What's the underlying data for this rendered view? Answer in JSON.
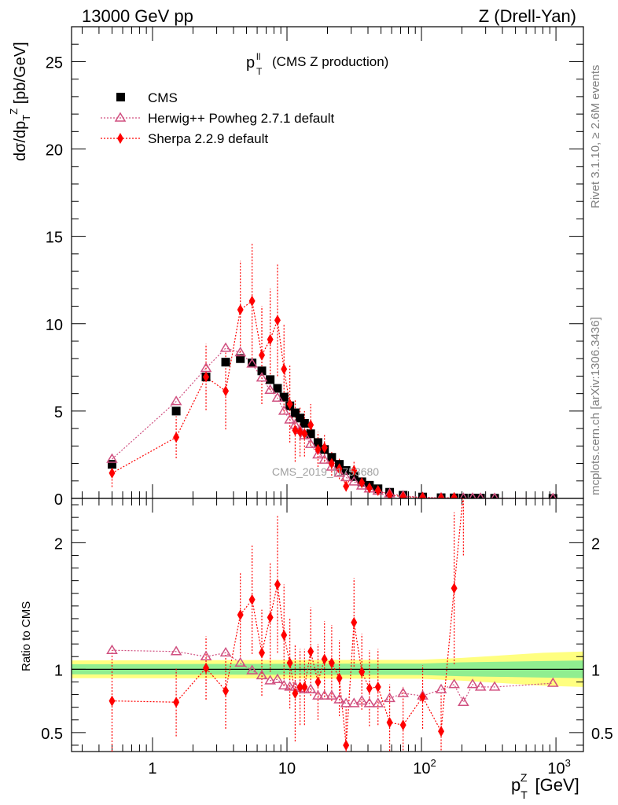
{
  "header": {
    "left": "13000 GeV pp",
    "right": "Z (Drell-Yan)"
  },
  "title": {
    "main": "p",
    "sup": "ll",
    "sub": "T",
    "rest": "(CMS Z production)"
  },
  "side_labels": {
    "rivet": "Rivet 3.1.10, ≥ 2.6M events",
    "mcplots": "mcplots.cern.ch [arXiv:1306.3436]"
  },
  "watermark": "CMS_2019_I1753680",
  "ylabel_top": "dσ/dp_T^Z [pb/GeV]",
  "ylabel_bottom": "Ratio to CMS",
  "xlabel": "p_T^Z [GeV]",
  "legend": [
    {
      "label": "CMS",
      "marker": "square",
      "color": "#000000"
    },
    {
      "label": "Herwig++ Powheg 2.7.1 default",
      "marker": "open-triangle",
      "color": "#d05080"
    },
    {
      "label": "Sherpa 2.2.9 default",
      "marker": "diamond",
      "color": "#ff0000"
    }
  ],
  "chart_data": [
    {
      "type": "scatter",
      "panel": "main",
      "xscale": "log",
      "xlim": [
        0.25,
        1600
      ],
      "ylim": [
        0,
        27
      ],
      "yticks": [
        0,
        5,
        10,
        15,
        20,
        25
      ],
      "xticks": [
        1,
        10,
        100,
        1000
      ],
      "xtick_labels": [
        "1",
        "10",
        "10^2",
        "10^3"
      ],
      "series": [
        {
          "name": "CMS",
          "x": [
            0.5,
            1.5,
            2.5,
            3.5,
            4.5,
            5.5,
            6.5,
            7.5,
            8.5,
            9.5,
            10.5,
            11.5,
            12.5,
            13.5,
            15,
            17,
            19,
            21.5,
            24.5,
            27.5,
            31.5,
            36,
            41,
            47.5,
            58,
            73,
            102,
            140,
            175,
            205,
            240,
            275,
            350,
            950
          ],
          "y": [
            1.95,
            5.0,
            6.95,
            7.8,
            8.0,
            7.75,
            7.3,
            6.8,
            6.3,
            5.8,
            5.3,
            4.9,
            4.6,
            4.3,
            3.7,
            3.2,
            2.8,
            2.35,
            1.95,
            1.6,
            1.25,
            0.95,
            0.75,
            0.55,
            0.35,
            0.18,
            0.08,
            0.04,
            0.03,
            0.02,
            0.02,
            0.015,
            0.01,
            0.0
          ]
        },
        {
          "name": "Herwig++ Powheg 2.7.1 default",
          "x": [
            0.5,
            1.5,
            2.5,
            3.5,
            4.5,
            5.5,
            6.5,
            7.5,
            8.5,
            9.5,
            10.5,
            11.5,
            12.5,
            13.5,
            15,
            17,
            19,
            21.5,
            24.5,
            27.5,
            31.5,
            36,
            41,
            47.5,
            58,
            73,
            102,
            140,
            175,
            205,
            240,
            275,
            350,
            950
          ],
          "y": [
            2.25,
            5.55,
            7.45,
            8.6,
            8.35,
            7.7,
            6.9,
            6.2,
            5.75,
            5.0,
            4.5,
            4.2,
            3.9,
            3.6,
            3.1,
            2.5,
            2.2,
            1.8,
            1.45,
            1.2,
            0.95,
            0.72,
            0.55,
            0.42,
            0.27,
            0.15,
            0.06,
            0.035,
            0.03,
            0.015,
            0.018,
            0.013,
            0.009,
            0.0
          ]
        },
        {
          "name": "Sherpa 2.2.9 default",
          "x": [
            0.5,
            1.5,
            2.5,
            3.5,
            4.5,
            5.5,
            6.5,
            7.5,
            8.5,
            9.5,
            10.5,
            11.5,
            12.5,
            13.5,
            15,
            17,
            19,
            21.5,
            24.5,
            27.5,
            31.5,
            36,
            41,
            47.5,
            58,
            73,
            102,
            140,
            175
          ],
          "y": [
            1.45,
            3.5,
            6.95,
            6.15,
            10.8,
            11.3,
            8.2,
            9.1,
            10.2,
            7.4,
            5.4,
            3.9,
            3.8,
            3.7,
            4.2,
            2.8,
            2.9,
            2.0,
            1.7,
            0.7,
            1.6,
            0.9,
            0.6,
            0.45,
            0.2,
            0.1,
            0.06,
            0.02,
            0.05
          ],
          "yerr": [
            0.8,
            1.2,
            1.9,
            2.2,
            2.8,
            3.3,
            2.8,
            2.9,
            3.2,
            2.6,
            2.2,
            1.8,
            1.4,
            1.3,
            1.2,
            1.0,
            0.8,
            0.7,
            0.6,
            0.3,
            0.5,
            0.3,
            0.2,
            0.15,
            0.1,
            0.05,
            0.03,
            0.01,
            0.03
          ]
        }
      ]
    },
    {
      "type": "scatter",
      "panel": "ratio",
      "xscale": "log",
      "xlim": [
        0.25,
        1600
      ],
      "ylim": [
        0.35,
        2.35
      ],
      "yticks": [
        0.5,
        1,
        2
      ],
      "ylabel": "Ratio to CMS",
      "band": {
        "x": [
          0.25,
          100,
          200,
          400,
          800,
          1600
        ],
        "inner": [
          0.04,
          0.045,
          0.055,
          0.06,
          0.065,
          0.07
        ],
        "outer": [
          0.07,
          0.075,
          0.09,
          0.11,
          0.13,
          0.14
        ]
      },
      "series": [
        {
          "name": "Herwig++ Powheg 2.7.1 default",
          "x": [
            0.5,
            1.5,
            2.5,
            3.5,
            4.5,
            5.5,
            6.5,
            7.5,
            8.5,
            9.5,
            10.5,
            11.5,
            12.5,
            13.5,
            15,
            17,
            19,
            21.5,
            24.5,
            27.5,
            31.5,
            36,
            41,
            47.5,
            58,
            73,
            102,
            140,
            175,
            205,
            240,
            275,
            350,
            950
          ],
          "y": [
            1.15,
            1.14,
            1.1,
            1.13,
            1.05,
            0.99,
            0.95,
            0.91,
            0.92,
            0.87,
            0.86,
            0.86,
            0.85,
            0.84,
            0.84,
            0.79,
            0.79,
            0.79,
            0.76,
            0.73,
            0.73,
            0.75,
            0.73,
            0.73,
            0.77,
            0.81,
            0.79,
            0.84,
            0.88,
            0.74,
            0.88,
            0.86,
            0.86,
            0.89
          ]
        },
        {
          "name": "Sherpa 2.2.9 default",
          "x": [
            0.5,
            1.5,
            2.5,
            3.5,
            4.5,
            5.5,
            6.5,
            7.5,
            8.5,
            9.5,
            10.5,
            11.5,
            12.5,
            13.5,
            15,
            17,
            19,
            21.5,
            24.5,
            27.5,
            31.5,
            36,
            41,
            47.5,
            58,
            73,
            102,
            140,
            175,
            205
          ],
          "y": [
            0.75,
            0.74,
            1.01,
            0.83,
            1.43,
            1.55,
            1.13,
            1.41,
            1.67,
            1.27,
            1.05,
            0.81,
            0.86,
            0.86,
            1.14,
            0.9,
            1.08,
            1.05,
            0.93,
            0.4,
            1.37,
            0.98,
            0.85,
            0.86,
            0.58,
            0.56,
            0.78,
            0.51,
            1.64,
            2.4
          ],
          "yerr": [
            0.4,
            0.27,
            0.25,
            0.3,
            0.33,
            0.43,
            0.34,
            0.43,
            0.54,
            0.4,
            0.36,
            0.38,
            0.3,
            0.3,
            0.35,
            0.3,
            0.3,
            0.3,
            0.3,
            0.3,
            0.35,
            0.3,
            0.3,
            0.3,
            0.3,
            0.3,
            0.25,
            0.3,
            0.6,
            0.5
          ]
        }
      ]
    }
  ]
}
